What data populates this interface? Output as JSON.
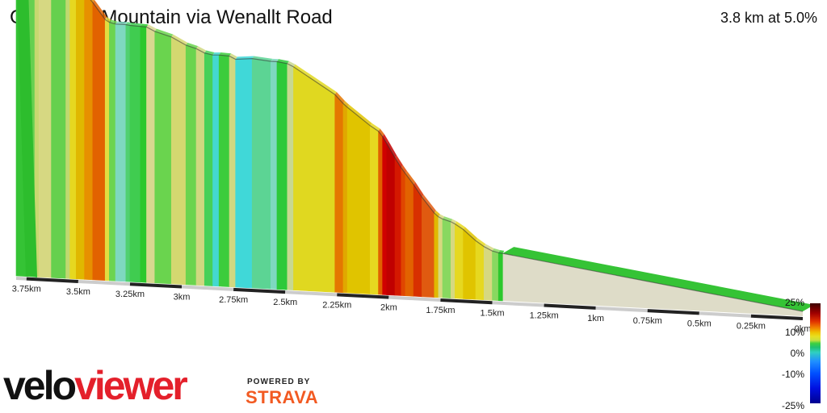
{
  "header": {
    "title": "Caerphilly Mountain via Wenallt Road",
    "summary": "3.8 km at 5.0%"
  },
  "chart_data": {
    "type": "area",
    "title": "Caerphilly Mountain via Wenallt Road",
    "summary": "3.8 km at 5.0%",
    "x_direction": "descending distance to finish",
    "xlabel": "",
    "ylabel": "",
    "distance_ticks": [
      "3.75km",
      "3.5km",
      "3.25km",
      "3km",
      "2.75km",
      "2.5km",
      "2.25km",
      "2km",
      "1.75km",
      "1.5km",
      "1.25km",
      "1km",
      "0.75km",
      "0.5km",
      "0.25km",
      "0km"
    ],
    "distance_tick_values_km": [
      3.75,
      3.5,
      3.25,
      3.0,
      2.75,
      2.5,
      2.25,
      2.0,
      1.75,
      1.5,
      1.25,
      1.0,
      0.75,
      0.5,
      0.25,
      0.0
    ],
    "xlim_km": [
      3.8,
      0.0
    ],
    "gradient_scale": {
      "labels": [
        "25%",
        "10%",
        "0%",
        "-10%",
        "-25%"
      ],
      "values": [
        25,
        10,
        0,
        -10,
        -25
      ]
    },
    "segments": [
      {
        "start_km": 3.8,
        "end_km": 3.74,
        "grade": 0.5,
        "color": "#35c335"
      },
      {
        "start_km": 3.74,
        "end_km": 3.71,
        "grade": 2.0,
        "color": "#66d050"
      },
      {
        "start_km": 3.71,
        "end_km": 3.69,
        "grade": 4.5,
        "color": "#c8d870"
      },
      {
        "start_km": 3.69,
        "end_km": 3.63,
        "grade": 5.0,
        "color": "#d6d882"
      },
      {
        "start_km": 3.63,
        "end_km": 3.56,
        "grade": 2.5,
        "color": "#66d04e"
      },
      {
        "start_km": 3.56,
        "end_km": 3.54,
        "grade": 4.5,
        "color": "#c0d870"
      },
      {
        "start_km": 3.54,
        "end_km": 3.51,
        "grade": 7.5,
        "color": "#e6d820"
      },
      {
        "start_km": 3.51,
        "end_km": 3.47,
        "grade": 9.0,
        "color": "#e0b800"
      },
      {
        "start_km": 3.47,
        "end_km": 3.43,
        "grade": 12.0,
        "color": "#e79000"
      },
      {
        "start_km": 3.43,
        "end_km": 3.37,
        "grade": 14.0,
        "color": "#e26200"
      },
      {
        "start_km": 3.37,
        "end_km": 3.35,
        "grade": 6.5,
        "color": "#e2dc40"
      },
      {
        "start_km": 3.35,
        "end_km": 3.32,
        "grade": 2.5,
        "color": "#6cd450"
      },
      {
        "start_km": 3.32,
        "end_km": 3.27,
        "grade": 0.0,
        "color": "#7ed8c0"
      },
      {
        "start_km": 3.27,
        "end_km": 3.25,
        "grade": 1.5,
        "color": "#50d070"
      },
      {
        "start_km": 3.25,
        "end_km": 3.2,
        "grade": 0.5,
        "color": "#40cc50"
      },
      {
        "start_km": 3.2,
        "end_km": 3.17,
        "grade": 0.5,
        "color": "#2cc82c"
      },
      {
        "start_km": 3.17,
        "end_km": 3.13,
        "grade": 5.0,
        "color": "#d8d890"
      },
      {
        "start_km": 3.13,
        "end_km": 3.05,
        "grade": 3.0,
        "color": "#6ad44e"
      },
      {
        "start_km": 3.05,
        "end_km": 2.98,
        "grade": 5.5,
        "color": "#d4d870"
      },
      {
        "start_km": 2.98,
        "end_km": 2.93,
        "grade": 3.0,
        "color": "#6ad44e"
      },
      {
        "start_km": 2.93,
        "end_km": 2.89,
        "grade": 5.0,
        "color": "#cfd880"
      },
      {
        "start_km": 2.89,
        "end_km": 2.85,
        "grade": 2.0,
        "color": "#46d058"
      },
      {
        "start_km": 2.85,
        "end_km": 2.82,
        "grade": -0.5,
        "color": "#44d8d0"
      },
      {
        "start_km": 2.82,
        "end_km": 2.77,
        "grade": 0.5,
        "color": "#3ccc3c"
      },
      {
        "start_km": 2.77,
        "end_km": 2.74,
        "grade": 5.0,
        "color": "#d0d880"
      },
      {
        "start_km": 2.74,
        "end_km": 2.66,
        "grade": -1.0,
        "color": "#40d8d8"
      },
      {
        "start_km": 2.66,
        "end_km": 2.57,
        "grade": 1.0,
        "color": "#5cd494"
      },
      {
        "start_km": 2.57,
        "end_km": 2.54,
        "grade": 0.0,
        "color": "#7ed8c0"
      },
      {
        "start_km": 2.54,
        "end_km": 2.49,
        "grade": 1.5,
        "color": "#2dc93a"
      },
      {
        "start_km": 2.49,
        "end_km": 2.46,
        "grade": 5.0,
        "color": "#c8d890"
      },
      {
        "start_km": 2.46,
        "end_km": 2.26,
        "grade": 6.5,
        "color": "#e0d820"
      },
      {
        "start_km": 2.26,
        "end_km": 2.22,
        "grade": 11.0,
        "color": "#e47800"
      },
      {
        "start_km": 2.22,
        "end_km": 2.2,
        "grade": 9.0,
        "color": "#e0a800"
      },
      {
        "start_km": 2.2,
        "end_km": 2.09,
        "grade": 8.0,
        "color": "#e0c400"
      },
      {
        "start_km": 2.09,
        "end_km": 2.05,
        "grade": 6.5,
        "color": "#e6d820"
      },
      {
        "start_km": 2.05,
        "end_km": 2.03,
        "grade": 13.0,
        "color": "#e06000"
      },
      {
        "start_km": 2.03,
        "end_km": 2.01,
        "grade": 17.0,
        "color": "#d00000"
      },
      {
        "start_km": 2.01,
        "end_km": 1.97,
        "grade": 18.0,
        "color": "#c00000"
      },
      {
        "start_km": 1.97,
        "end_km": 1.94,
        "grade": 16.0,
        "color": "#d41800"
      },
      {
        "start_km": 1.94,
        "end_km": 1.92,
        "grade": 14.5,
        "color": "#e04600"
      },
      {
        "start_km": 1.92,
        "end_km": 1.88,
        "grade": 13.5,
        "color": "#e26200"
      },
      {
        "start_km": 1.88,
        "end_km": 1.84,
        "grade": 15.5,
        "color": "#d83000"
      },
      {
        "start_km": 1.84,
        "end_km": 1.78,
        "grade": 13.0,
        "color": "#e05a10"
      },
      {
        "start_km": 1.78,
        "end_km": 1.76,
        "grade": 9.0,
        "color": "#e0b800"
      },
      {
        "start_km": 1.76,
        "end_km": 1.74,
        "grade": 5.0,
        "color": "#d6d880"
      },
      {
        "start_km": 1.74,
        "end_km": 1.7,
        "grade": 3.0,
        "color": "#88d860"
      },
      {
        "start_km": 1.7,
        "end_km": 1.68,
        "grade": 5.0,
        "color": "#d6d880"
      },
      {
        "start_km": 1.68,
        "end_km": 1.64,
        "grade": 6.5,
        "color": "#e6d820"
      },
      {
        "start_km": 1.64,
        "end_km": 1.58,
        "grade": 9.0,
        "color": "#e0c400"
      },
      {
        "start_km": 1.58,
        "end_km": 1.54,
        "grade": 7.0,
        "color": "#e6d820"
      },
      {
        "start_km": 1.54,
        "end_km": 1.5,
        "grade": 5.0,
        "color": "#d6d880"
      },
      {
        "start_km": 1.5,
        "end_km": 1.47,
        "grade": 2.5,
        "color": "#88d860"
      },
      {
        "start_km": 1.47,
        "end_km": 1.45,
        "grade": 1.0,
        "color": "#2cc82c"
      }
    ]
  },
  "legend": {
    "labels": [
      "25%",
      "10%",
      "0%",
      "-10%",
      "-25%"
    ]
  },
  "branding": {
    "logo_a": "velo",
    "logo_b": "viewer",
    "powered_by": "POWERED BY",
    "strava": "STRAVA"
  },
  "colors": {
    "edge_line": "#222222",
    "axis_tick_dark": "#222222",
    "axis_tick_light": "#cccccc",
    "brand_red": "#e4202b",
    "strava_orange": "#f25a22"
  }
}
